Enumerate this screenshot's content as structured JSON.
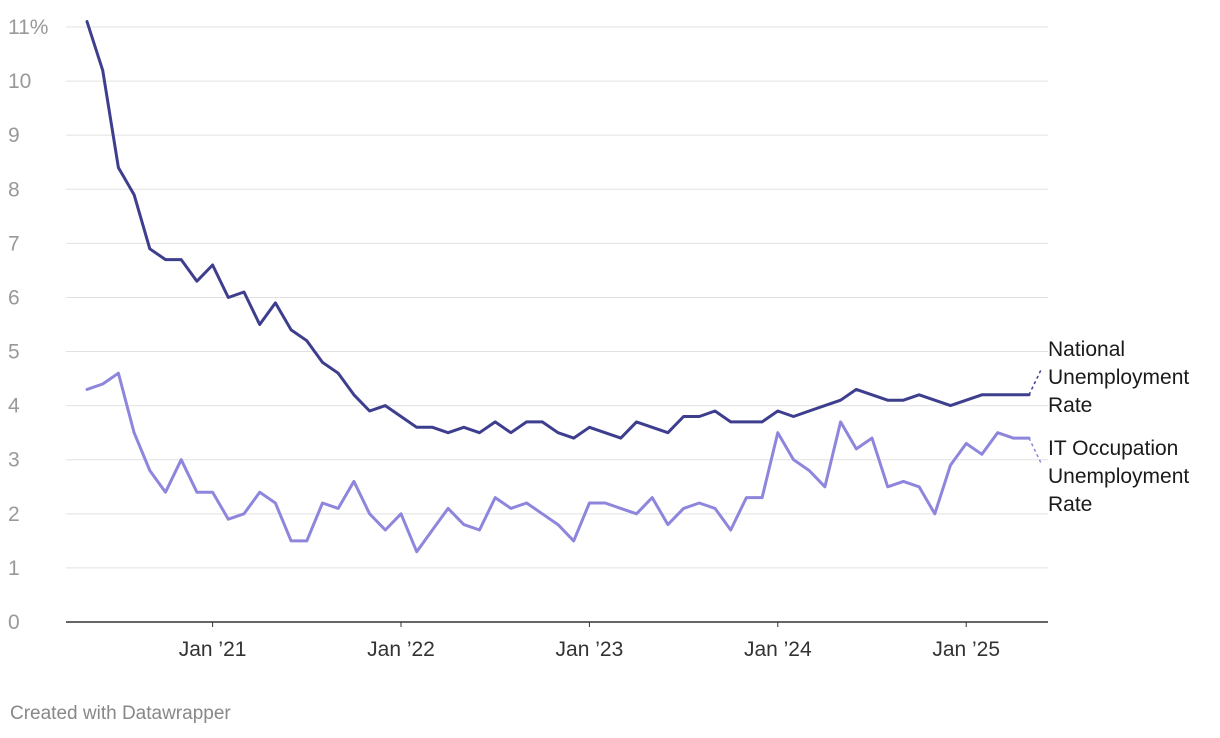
{
  "credit": "Created with Datawrapper",
  "chart_data": {
    "type": "line",
    "title": "",
    "xlabel": "",
    "ylabel": "",
    "y_unit_suffix": "%",
    "ylim": [
      0,
      11
    ],
    "yticks": [
      0,
      1,
      2,
      3,
      4,
      5,
      6,
      7,
      8,
      9,
      10,
      11
    ],
    "ytick_labels": [
      "0",
      "1",
      "2",
      "3",
      "4",
      "5",
      "6",
      "7",
      "8",
      "9",
      "10",
      "11%"
    ],
    "x_start": "2020-05",
    "x_end": "2025-06",
    "xticks": [
      "2021-01",
      "2022-01",
      "2023-01",
      "2024-01",
      "2025-01"
    ],
    "xtick_labels": [
      "Jan ’21",
      "Jan ’22",
      "Jan ’23",
      "Jan ’24",
      "Jan ’25"
    ],
    "grid": true,
    "legend": "direct labels at right end of lines",
    "x": [
      "2020-05",
      "2020-06",
      "2020-07",
      "2020-08",
      "2020-09",
      "2020-10",
      "2020-11",
      "2020-12",
      "2021-01",
      "2021-02",
      "2021-03",
      "2021-04",
      "2021-05",
      "2021-06",
      "2021-07",
      "2021-08",
      "2021-09",
      "2021-10",
      "2021-11",
      "2021-12",
      "2022-01",
      "2022-02",
      "2022-03",
      "2022-04",
      "2022-05",
      "2022-06",
      "2022-07",
      "2022-08",
      "2022-09",
      "2022-10",
      "2022-11",
      "2022-12",
      "2023-01",
      "2023-02",
      "2023-03",
      "2023-04",
      "2023-05",
      "2023-06",
      "2023-07",
      "2023-08",
      "2023-09",
      "2023-10",
      "2023-11",
      "2023-12",
      "2024-01",
      "2024-02",
      "2024-03",
      "2024-04",
      "2024-05",
      "2024-06",
      "2024-07",
      "2024-08",
      "2024-09",
      "2024-10",
      "2024-11",
      "2024-12",
      "2025-01",
      "2025-02",
      "2025-03",
      "2025-04",
      "2025-05"
    ],
    "series": [
      {
        "name": "National Unemployment Rate",
        "label_lines": [
          "National",
          "Unemployment",
          "Rate"
        ],
        "color": "#3e3e8e",
        "values": [
          11.1,
          10.2,
          8.4,
          7.9,
          6.9,
          6.7,
          6.7,
          6.3,
          6.6,
          6.0,
          6.1,
          5.5,
          5.9,
          5.4,
          5.2,
          4.8,
          4.6,
          4.2,
          3.9,
          4.0,
          3.8,
          3.6,
          3.6,
          3.5,
          3.6,
          3.5,
          3.7,
          3.5,
          3.7,
          3.7,
          3.5,
          3.4,
          3.6,
          3.5,
          3.4,
          3.7,
          3.6,
          3.5,
          3.8,
          3.8,
          3.9,
          3.7,
          3.7,
          3.7,
          3.9,
          3.8,
          3.9,
          4.0,
          4.1,
          4.3,
          4.2,
          4.1,
          4.1,
          4.2,
          4.1,
          4.0,
          4.1,
          4.2,
          4.2,
          4.2,
          4.2
        ],
        "label_anchor_value": 4.7
      },
      {
        "name": "IT Occupation Unemployment Rate",
        "label_lines": [
          "IT Occupation",
          "Unemployment",
          "Rate"
        ],
        "color": "#8d86dc",
        "values": [
          4.3,
          4.4,
          4.6,
          3.5,
          2.8,
          2.4,
          3.0,
          2.4,
          2.4,
          1.9,
          2.0,
          2.4,
          2.2,
          1.5,
          1.5,
          2.2,
          2.1,
          2.6,
          2.0,
          1.7,
          2.0,
          1.3,
          1.7,
          2.1,
          1.8,
          1.7,
          2.3,
          2.1,
          2.2,
          2.0,
          1.8,
          1.5,
          2.2,
          2.2,
          2.1,
          2.0,
          2.3,
          1.8,
          2.1,
          2.2,
          2.1,
          1.7,
          2.3,
          2.3,
          3.5,
          3.0,
          2.8,
          2.5,
          3.7,
          3.2,
          3.4,
          2.5,
          2.6,
          2.5,
          2.0,
          2.9,
          3.3,
          3.1,
          3.5,
          3.4,
          3.4
        ],
        "label_anchor_value": 2.9
      }
    ]
  }
}
